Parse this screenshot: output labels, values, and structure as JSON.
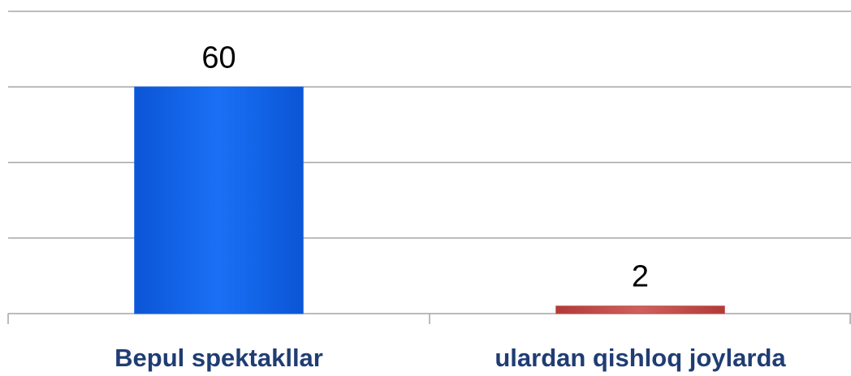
{
  "chart_data": {
    "type": "bar",
    "categories": [
      "Bepul spektakllar",
      "ulardan qishloq joylarda"
    ],
    "values": [
      60,
      2
    ],
    "colors": [
      "#1565e8",
      "#c0504d"
    ],
    "ylim": [
      0,
      80
    ],
    "yticks": [
      0,
      20,
      40,
      60,
      80
    ],
    "grid": true
  }
}
